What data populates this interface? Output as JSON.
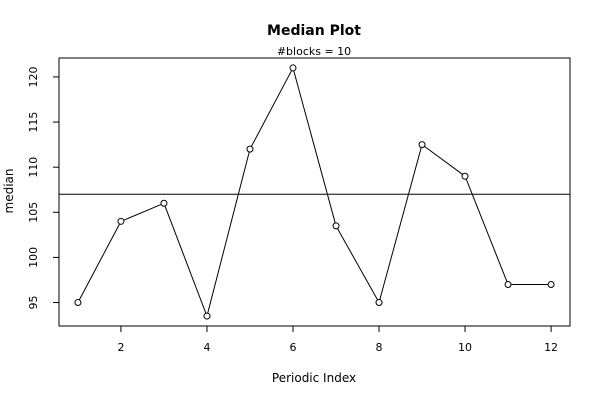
{
  "chart_data": {
    "type": "line",
    "title": "Median Plot",
    "subtitle": "#blocks =  10",
    "xlabel": "Periodic Index",
    "ylabel": "median",
    "x": [
      1,
      2,
      3,
      4,
      5,
      6,
      7,
      8,
      9,
      10,
      11,
      12
    ],
    "values": [
      95,
      104,
      106,
      93.5,
      112,
      121,
      103.5,
      95,
      112.5,
      109,
      97,
      97
    ],
    "reference_line": 107,
    "xlim": [
      0.56,
      12.44
    ],
    "ylim": [
      92.4,
      122.1
    ],
    "xticks": [
      2,
      4,
      6,
      8,
      10,
      12
    ],
    "yticks": [
      95,
      100,
      105,
      110,
      115,
      120
    ],
    "xtick_labels": [
      "2",
      "4",
      "6",
      "8",
      "10",
      "12"
    ],
    "ytick_labels": [
      "95",
      "100",
      "105",
      "110",
      "115",
      "120"
    ],
    "grid": false,
    "legend": "none",
    "line_color": "#000000",
    "point_fill": "#ffffff"
  }
}
